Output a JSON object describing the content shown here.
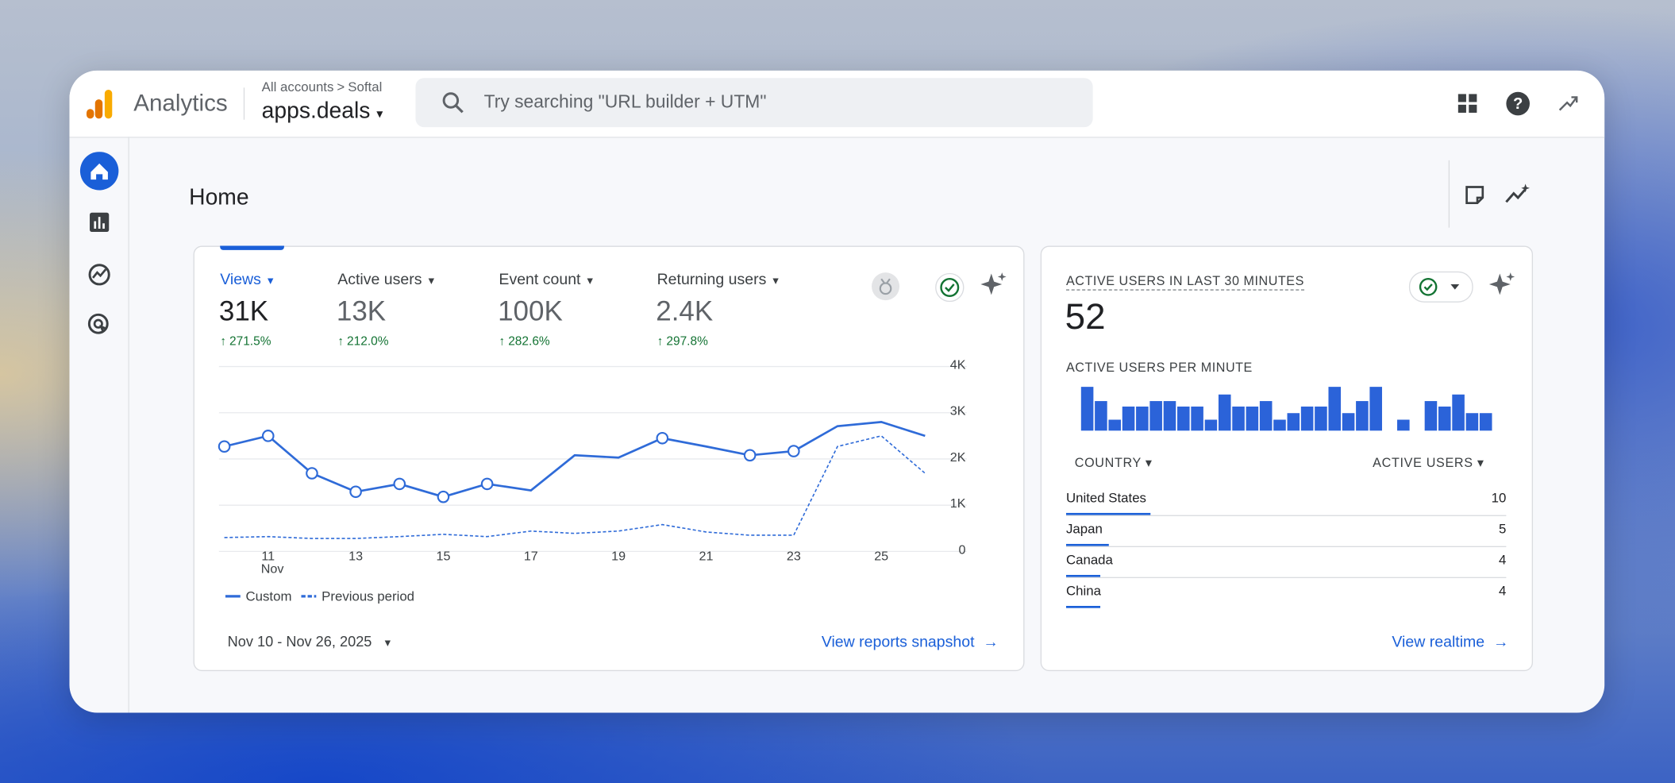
{
  "header": {
    "product": "Analytics",
    "breadcrumb": [
      "All accounts",
      "Softal"
    ],
    "property": "apps.deals",
    "search_placeholder": "Try searching \"URL builder + UTM\""
  },
  "page_title": "Home",
  "metrics": [
    {
      "name": "Views",
      "value": "31K",
      "change": "271.5%"
    },
    {
      "name": "Active users",
      "value": "13K",
      "change": "212.0%"
    },
    {
      "name": "Event count",
      "value": "100K",
      "change": "282.6%"
    },
    {
      "name": "Returning users",
      "value": "2.4K",
      "change": "297.8%"
    }
  ],
  "chart_data": [
    {
      "type": "line",
      "x": [
        10,
        11,
        12,
        13,
        14,
        15,
        16,
        17,
        18,
        19,
        20,
        21,
        22,
        23,
        24,
        25,
        26
      ],
      "xlim": [
        10,
        26
      ],
      "xticks": [
        11,
        13,
        15,
        17,
        19,
        21,
        23,
        25
      ],
      "x_month_label": "Nov",
      "ylim": [
        0,
        4000
      ],
      "yticks": [
        0,
        {
          "value": 1000,
          "label": "1K"
        },
        {
          "value": 2000,
          "label": "2K"
        },
        {
          "value": 3000,
          "label": "3K"
        },
        {
          "value": 4000,
          "label": "4K"
        }
      ],
      "grid": true,
      "series": [
        {
          "name": "Custom",
          "color": "#2f6bd8",
          "style": "solid",
          "values": [
            2270,
            2500,
            1690,
            1290,
            1460,
            1180,
            1460,
            1320,
            2080,
            2030,
            2450,
            2270,
            2080,
            2170,
            2710,
            2800,
            2500
          ]
        },
        {
          "name": "Previous period",
          "color": "#2f6bd8",
          "style": "dashed",
          "values": [
            300,
            320,
            280,
            280,
            320,
            370,
            320,
            440,
            390,
            440,
            580,
            420,
            350,
            350,
            2270,
            2500,
            1690
          ]
        }
      ]
    },
    {
      "type": "bar",
      "color": "#2b63d9",
      "values": [
        4,
        2.7,
        1,
        2.2,
        2.2,
        2.7,
        2.7,
        2.2,
        2.2,
        1,
        3.3,
        2.2,
        2.2,
        2.7,
        1,
        1.6,
        2.2,
        2.2,
        4,
        1.6,
        2.7,
        4,
        0,
        1,
        0,
        2.7,
        2.2,
        3.3,
        1.6,
        1.6
      ]
    }
  ],
  "date_range": "Nov 10 - Nov 26, 2025",
  "reports_link": "View reports snapshot",
  "realtime": {
    "title": "ACTIVE USERS IN LAST 30 MINUTES",
    "value": 52,
    "subtitle": "ACTIVE USERS PER MINUTE",
    "columns": [
      "COUNTRY",
      "ACTIVE USERS"
    ],
    "rows": [
      {
        "country": "United States",
        "users": 10
      },
      {
        "country": "Japan",
        "users": 5
      },
      {
        "country": "Canada",
        "users": 4
      },
      {
        "country": "China",
        "users": 4
      }
    ],
    "link": "View realtime"
  }
}
